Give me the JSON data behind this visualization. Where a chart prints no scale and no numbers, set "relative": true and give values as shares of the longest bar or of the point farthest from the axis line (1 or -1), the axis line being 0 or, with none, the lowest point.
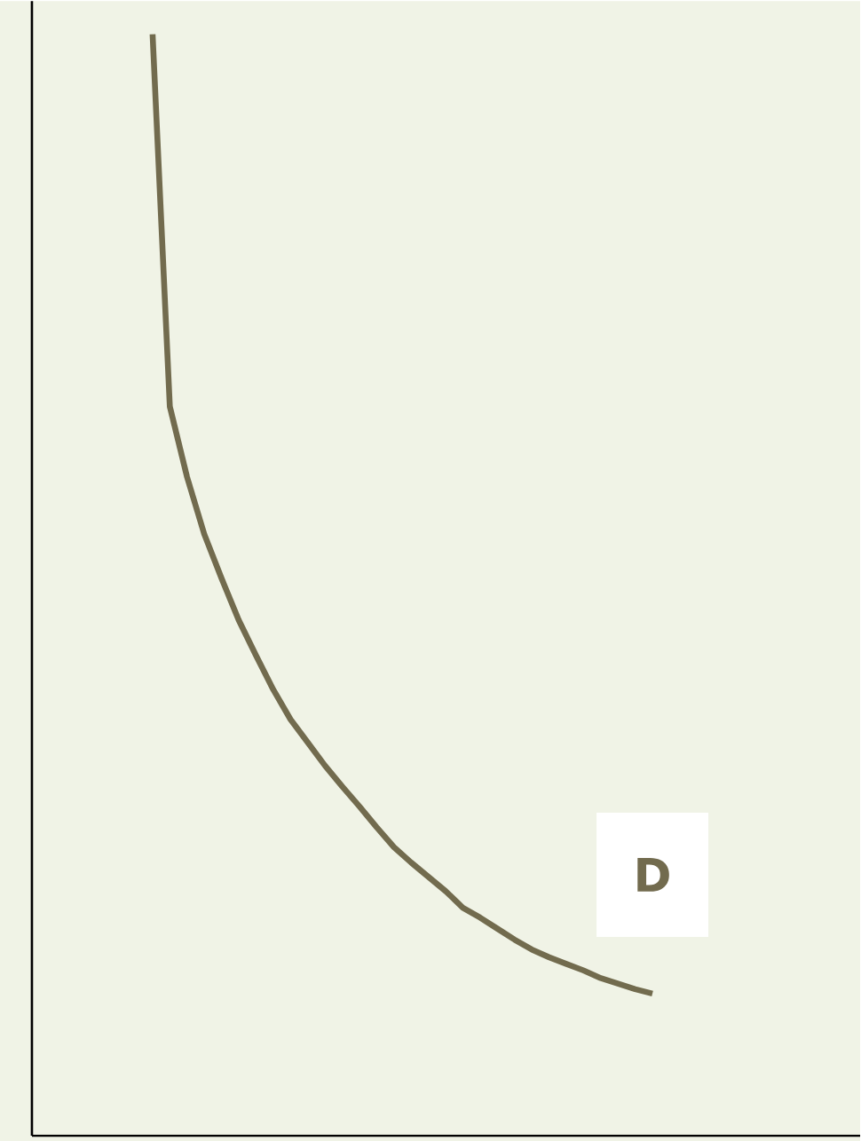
{
  "chart_data": {
    "type": "line",
    "relative": true,
    "categories": [
      null,
      null,
      null,
      null,
      null,
      null,
      null,
      null,
      null,
      null,
      null,
      null,
      null,
      null,
      null,
      null,
      null,
      null,
      null,
      null,
      null,
      null,
      null,
      null,
      null,
      null,
      null,
      null,
      null,
      null
    ],
    "series": [
      {
        "name": "D",
        "color": "#726b4e",
        "values": [
          1.0,
          0.662,
          0.598,
          0.546,
          0.506,
          0.468,
          0.436,
          0.405,
          0.378,
          0.357,
          0.336,
          0.317,
          0.299,
          0.28,
          0.262,
          0.248,
          0.235,
          0.222,
          0.207,
          0.198,
          0.188,
          0.178,
          0.169,
          0.162,
          0.156,
          0.15,
          0.143,
          0.138,
          0.133,
          0.129
        ]
      }
    ]
  }
}
